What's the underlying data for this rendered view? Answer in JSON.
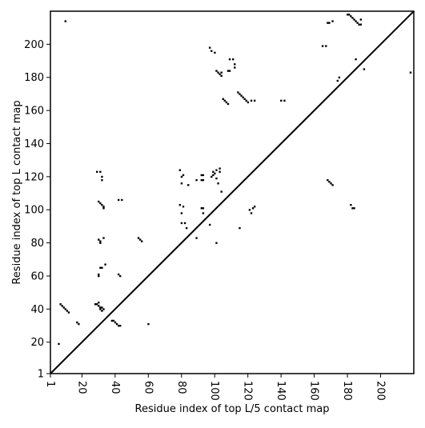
{
  "chart_data": {
    "type": "scatter",
    "xlabel": "Residue index of top L/5 contact map",
    "ylabel": "Residue index of top L contact map",
    "xlim": [
      1,
      220
    ],
    "ylim": [
      1,
      220
    ],
    "x_ticks": [
      1,
      20,
      40,
      60,
      80,
      100,
      120,
      140,
      160,
      180,
      200
    ],
    "y_ticks": [
      1,
      20,
      40,
      60,
      80,
      100,
      120,
      140,
      160,
      180,
      200
    ],
    "grid": false,
    "diagonal_line": true,
    "marker_color": "#000000",
    "series": [
      {
        "values": [
          [
            10,
            214
          ],
          [
            9,
            41
          ],
          [
            10,
            40
          ],
          [
            11,
            39
          ],
          [
            12,
            38
          ],
          [
            7,
            43
          ],
          [
            8,
            42
          ],
          [
            6,
            19
          ],
          [
            17,
            32
          ],
          [
            18,
            31
          ],
          [
            28,
            43
          ],
          [
            29,
            43
          ],
          [
            30,
            42
          ],
          [
            31,
            41
          ],
          [
            31,
            40
          ],
          [
            32,
            39
          ],
          [
            32,
            41
          ],
          [
            33,
            40
          ],
          [
            30,
            44
          ],
          [
            34,
            67
          ],
          [
            30,
            105
          ],
          [
            31,
            104
          ],
          [
            32,
            103
          ],
          [
            33,
            102
          ],
          [
            30,
            82
          ],
          [
            31,
            81
          ],
          [
            31,
            80
          ],
          [
            33,
            83
          ],
          [
            30,
            61
          ],
          [
            30,
            60
          ],
          [
            31,
            65
          ],
          [
            32,
            65
          ],
          [
            33,
            101
          ],
          [
            31,
            123
          ],
          [
            32,
            120
          ],
          [
            32,
            118
          ],
          [
            29,
            123
          ],
          [
            38,
            33
          ],
          [
            39,
            33
          ],
          [
            40,
            32
          ],
          [
            41,
            31
          ],
          [
            42,
            30
          ],
          [
            43,
            30
          ],
          [
            42,
            106
          ],
          [
            44,
            106
          ],
          [
            42,
            61
          ],
          [
            43,
            60
          ],
          [
            60,
            31
          ],
          [
            54,
            83
          ],
          [
            55,
            82
          ],
          [
            56,
            81
          ],
          [
            79,
            124
          ],
          [
            80,
            120
          ],
          [
            81,
            121
          ],
          [
            80,
            116
          ],
          [
            79,
            103
          ],
          [
            81,
            102
          ],
          [
            80,
            98
          ],
          [
            80,
            92
          ],
          [
            82,
            92
          ],
          [
            83,
            89
          ],
          [
            84,
            115
          ],
          [
            89,
            118
          ],
          [
            89,
            83
          ],
          [
            92,
            121
          ],
          [
            93,
            121
          ],
          [
            92,
            118
          ],
          [
            93,
            118
          ],
          [
            92,
            101
          ],
          [
            93,
            101
          ],
          [
            93,
            98
          ],
          [
            97,
            198
          ],
          [
            98,
            196
          ],
          [
            100,
            195
          ],
          [
            97,
            91
          ],
          [
            99,
            123
          ],
          [
            100,
            122
          ],
          [
            101,
            124
          ],
          [
            98,
            120
          ],
          [
            99,
            121
          ],
          [
            101,
            119
          ],
          [
            102,
            116
          ],
          [
            103,
            123
          ],
          [
            104,
            111
          ],
          [
            103,
            125
          ],
          [
            101,
            184
          ],
          [
            102,
            183
          ],
          [
            103,
            182
          ],
          [
            104,
            183
          ],
          [
            104,
            181
          ],
          [
            101,
            80
          ],
          [
            105,
            167
          ],
          [
            106,
            166
          ],
          [
            107,
            165
          ],
          [
            108,
            164
          ],
          [
            108,
            184
          ],
          [
            109,
            191
          ],
          [
            109,
            184
          ],
          [
            111,
            191
          ],
          [
            112,
            188
          ],
          [
            112,
            186
          ],
          [
            114,
            171
          ],
          [
            115,
            170
          ],
          [
            116,
            169
          ],
          [
            117,
            168
          ],
          [
            118,
            167
          ],
          [
            119,
            166
          ],
          [
            120,
            165
          ],
          [
            122,
            166
          ],
          [
            123,
            101
          ],
          [
            124,
            102
          ],
          [
            121,
            100
          ],
          [
            122,
            98
          ],
          [
            124,
            166
          ],
          [
            115,
            89
          ],
          [
            140,
            166
          ],
          [
            142,
            166
          ],
          [
            165,
            199
          ],
          [
            168,
            213
          ],
          [
            169,
            213
          ],
          [
            167,
            199
          ],
          [
            171,
            214
          ],
          [
            168,
            118
          ],
          [
            169,
            117
          ],
          [
            170,
            116
          ],
          [
            171,
            115
          ],
          [
            174,
            178
          ],
          [
            175,
            180
          ],
          [
            180,
            218
          ],
          [
            181,
            218
          ],
          [
            182,
            217
          ],
          [
            183,
            216
          ],
          [
            184,
            215
          ],
          [
            185,
            214
          ],
          [
            186,
            213
          ],
          [
            187,
            212
          ],
          [
            188,
            212
          ],
          [
            188,
            215
          ],
          [
            182,
            103
          ],
          [
            183,
            101
          ],
          [
            184,
            101
          ],
          [
            185,
            191
          ],
          [
            190,
            185
          ],
          [
            218,
            183
          ]
        ]
      }
    ]
  }
}
